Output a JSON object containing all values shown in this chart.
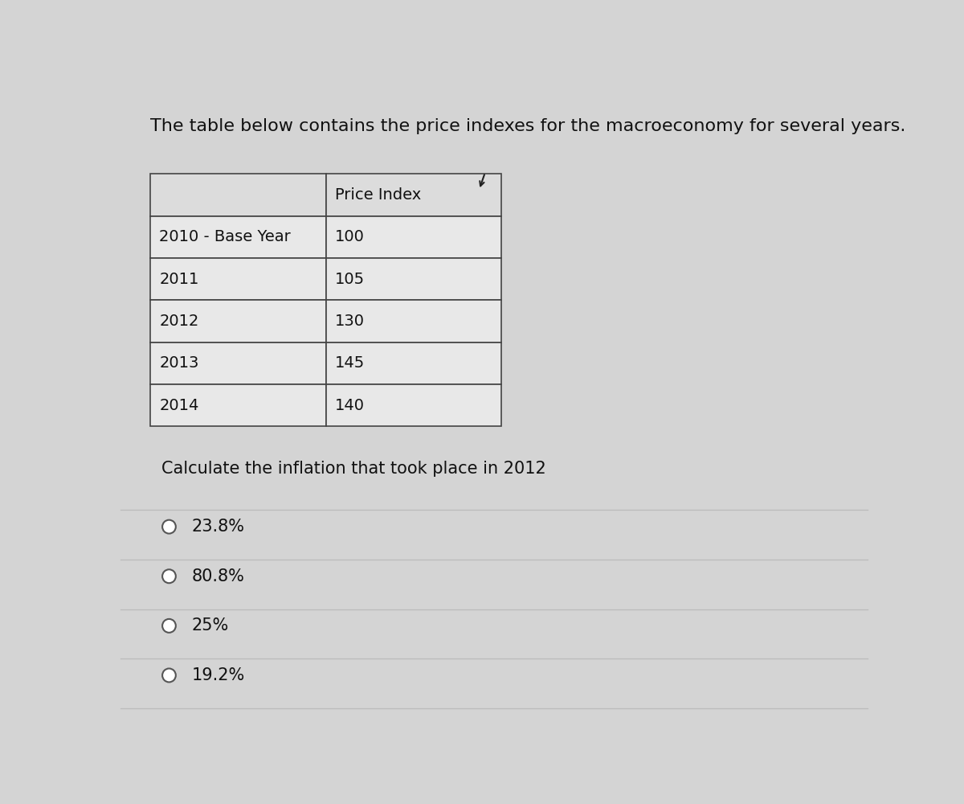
{
  "title": "The table below contains the price indexes for the macroeconomy for several years.",
  "title_fontsize": 16,
  "background_color": "#d4d4d4",
  "table_header": [
    "",
    "Price Index"
  ],
  "table_rows": [
    [
      "2010 - Base Year",
      "100"
    ],
    [
      "2011",
      "105"
    ],
    [
      "2012",
      "130"
    ],
    [
      "2013",
      "145"
    ],
    [
      "2014",
      "140"
    ]
  ],
  "question": "Calculate the inflation that took place in 2012",
  "question_fontsize": 15,
  "options": [
    "23.8%",
    "80.8%",
    "25%",
    "19.2%"
  ],
  "options_fontsize": 15,
  "table_bg": "#e8e8e8",
  "table_header_bg": "#dcdcdc",
  "cell_text_fontsize": 14,
  "table_border_color": "#444444",
  "sep_line_color": "#bbbbbb"
}
